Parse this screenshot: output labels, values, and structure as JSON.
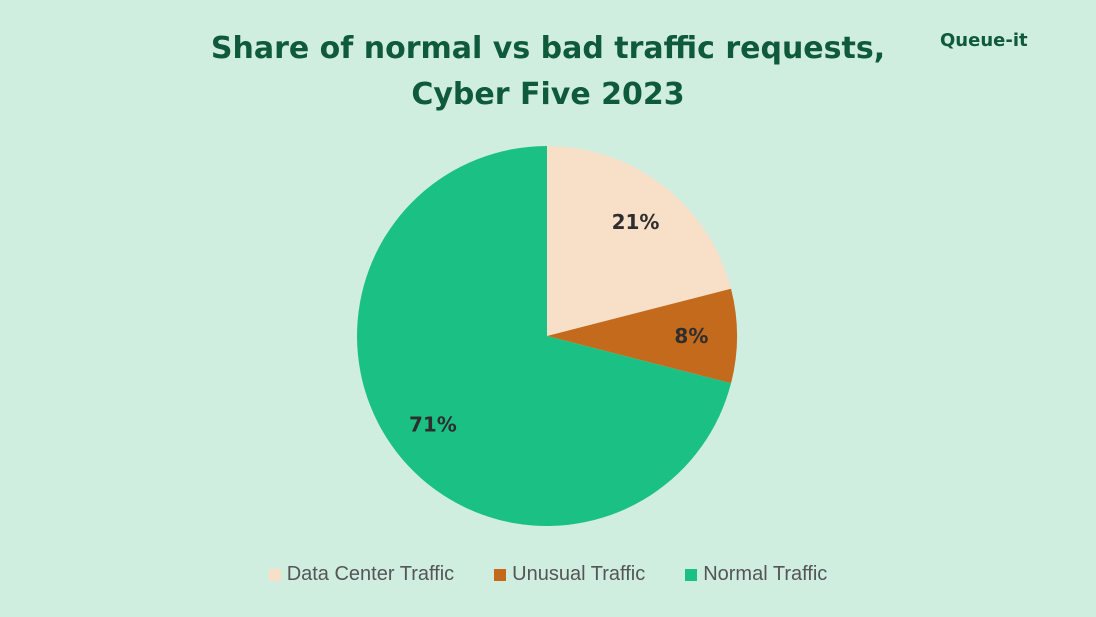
{
  "logo_text": "Queue-it",
  "chart_data": {
    "type": "pie",
    "title_lines": [
      "Share of normal vs bad traffic requests,",
      "Cyber Five 2023"
    ],
    "slices": [
      {
        "name": "Data Center Traffic",
        "value": 21,
        "label": "21%",
        "color": "#f8dfc8"
      },
      {
        "name": "Unusual Traffic",
        "value": 8,
        "label": "8%",
        "color": "#c46a1c"
      },
      {
        "name": "Normal Traffic",
        "value": 71,
        "label": "71%",
        "color": "#1bc184"
      }
    ],
    "legend_position": "bottom"
  }
}
